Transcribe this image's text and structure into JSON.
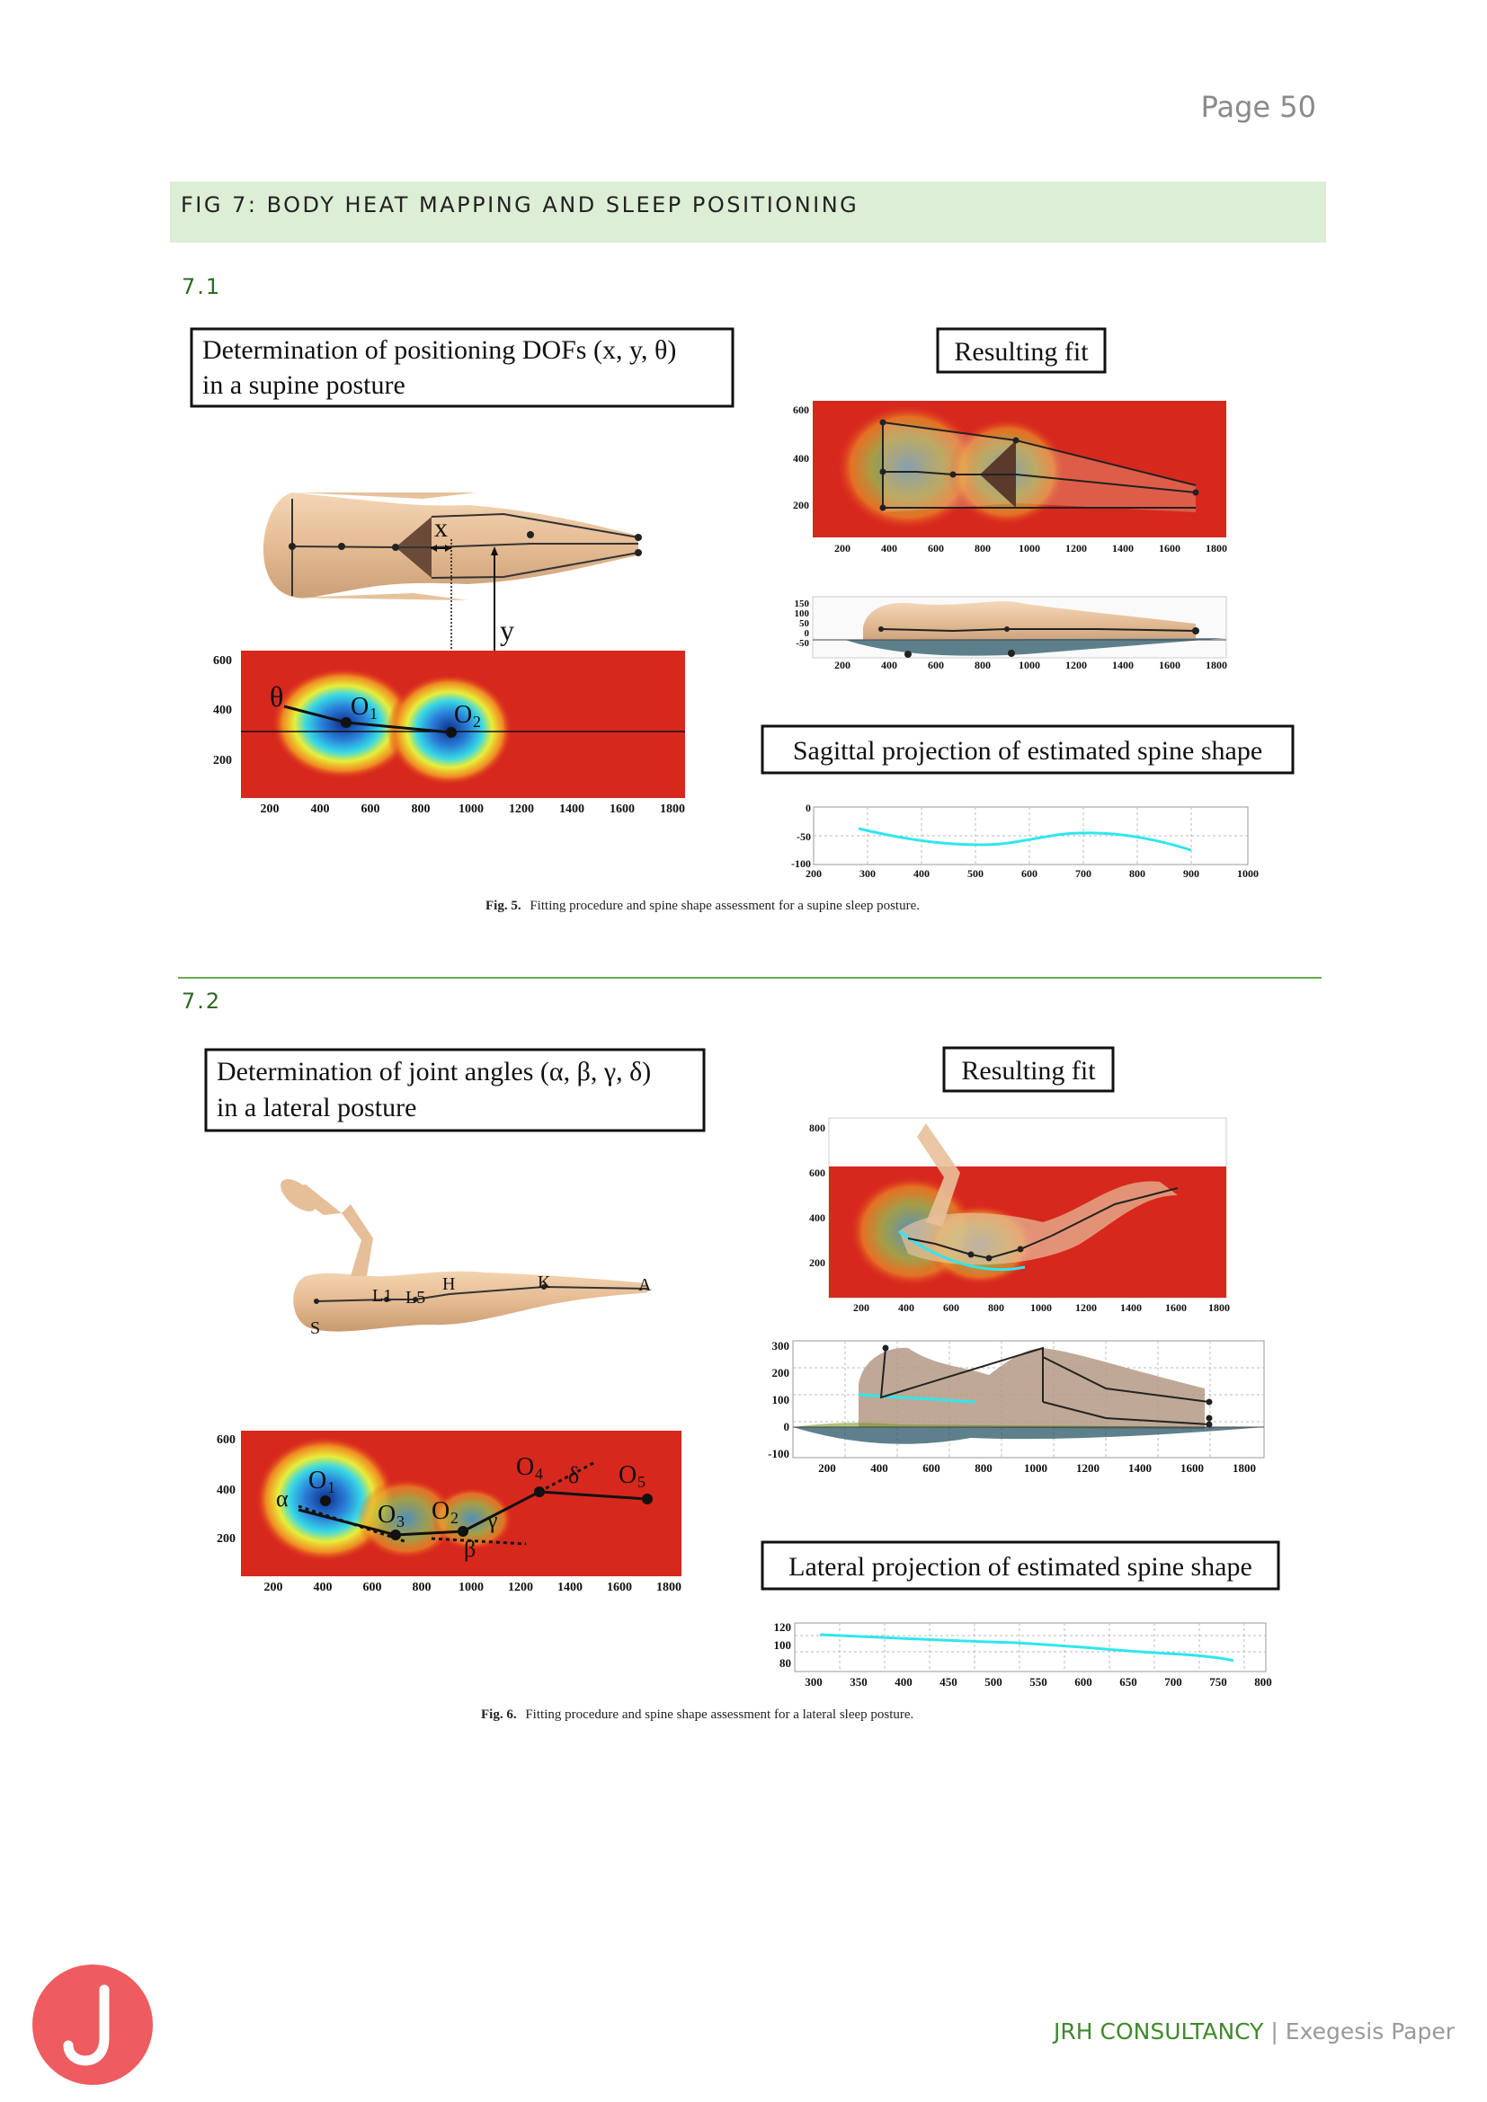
{
  "page": {
    "number_label": "Page 50"
  },
  "figure_banner": {
    "title": "FIG 7: BODY HEAT MAPPING AND SLEEP POSITIONING"
  },
  "section_1": {
    "label": "7.1",
    "left_box": [
      "Determination of positioning DOFs (x, y, θ)",
      "in a supine posture"
    ],
    "right_box": "Resulting fit",
    "sagittal_box": "Sagittal projection of estimated spine shape",
    "markers": {
      "x": "x",
      "y": "y",
      "theta": "θ",
      "o1": "O",
      "o1_sub": "1",
      "o2": "O",
      "o2_sub": "2"
    },
    "heatmap_y_ticks": [
      "600",
      "400",
      "200"
    ],
    "heatmap_x_ticks": [
      "200",
      "400",
      "600",
      "800",
      "1000",
      "1200",
      "1400",
      "1600",
      "1800"
    ],
    "fit_y_ticks": [
      "600",
      "400",
      "200"
    ],
    "fit_x_ticks": [
      "200",
      "400",
      "600",
      "800",
      "1000",
      "1200",
      "1400",
      "1600",
      "1800"
    ],
    "sag_y_ticks": [
      "150",
      "100",
      "50",
      "0",
      "-50"
    ],
    "sag_x_ticks": [
      "200",
      "400",
      "600",
      "800",
      "1000",
      "1200",
      "1400",
      "1600",
      "1800"
    ],
    "spine_y_ticks": [
      "0",
      "-50",
      "-100"
    ],
    "spine_x_ticks": [
      "200",
      "300",
      "400",
      "500",
      "600",
      "700",
      "800",
      "900",
      "1000"
    ],
    "caption_bold": "Fig. 5.",
    "caption_text": "Fitting procedure and spine shape assessment for a supine sleep posture."
  },
  "section_2": {
    "label": "7.2",
    "left_box": [
      "Determination of joint angles (α, β, γ, δ)",
      "in a lateral posture"
    ],
    "right_box": "Resulting fit",
    "lateral_box": "Lateral projection of estimated spine shape",
    "body_labels": {
      "l1": "L1",
      "l5": "L5",
      "h": "H",
      "k": "K",
      "a": "A",
      "s": "S"
    },
    "markers": {
      "alpha": "α",
      "beta": "β",
      "gamma": "γ",
      "delta": "δ",
      "o": "O",
      "s1": "1",
      "s2": "2",
      "s3": "3",
      "s4": "4",
      "s5": "5"
    },
    "heatmap_y_ticks": [
      "600",
      "400",
      "200"
    ],
    "heatmap_x_ticks": [
      "200",
      "400",
      "600",
      "800",
      "1000",
      "1200",
      "1400",
      "1600",
      "1800"
    ],
    "fit_y_ticks": [
      "800",
      "600",
      "400",
      "200"
    ],
    "fit_x_ticks": [
      "200",
      "400",
      "600",
      "800",
      "1000",
      "1200",
      "1400",
      "1600",
      "1800"
    ],
    "side_y_ticks": [
      "300",
      "200",
      "100",
      "0",
      "-100"
    ],
    "side_x_ticks": [
      "200",
      "400",
      "600",
      "800",
      "1000",
      "1200",
      "1400",
      "1600",
      "1800"
    ],
    "spine_y_ticks": [
      "120",
      "100",
      "80"
    ],
    "spine_x_ticks": [
      "300",
      "350",
      "400",
      "450",
      "500",
      "550",
      "600",
      "650",
      "700",
      "750",
      "800"
    ],
    "caption_bold": "Fig. 6.",
    "caption_text": "Fitting procedure and spine shape assessment for a lateral sleep posture."
  },
  "footer": {
    "brand": "JRH CONSULTANCY",
    "separator": "|",
    "doc_type": "Exegesis Paper",
    "logo_letter": "J"
  },
  "colors": {
    "banner_bg": "#dcefd6",
    "accent_green": "#3f8a2a",
    "logo_red": "#ee5c60",
    "heat_red": "#d7281e",
    "spine_cyan": "#30e6ee",
    "skin": "#e8c09a"
  }
}
